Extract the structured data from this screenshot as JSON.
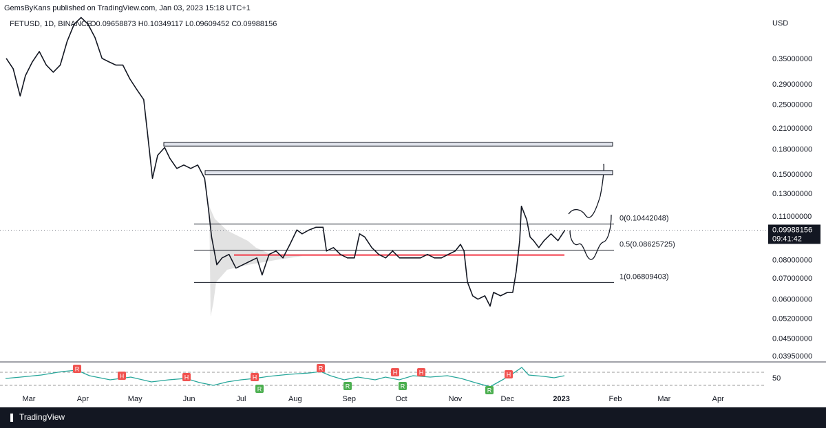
{
  "chart_data": {
    "type": "line",
    "published": "GemsByKans published on TradingView.com, Jan 03, 2023 15:18 UTC+1",
    "title": "FETUSD, 1D, BINANCE",
    "ohlc_text": "O0.09658873 H0.10349117 L0.09609452 C0.09988156",
    "y_axis_label": "USD",
    "color": "#131722",
    "log_scale": true,
    "grid": false,
    "x": [
      46,
      50,
      54,
      57,
      61,
      65,
      69,
      73,
      77,
      81,
      85,
      89,
      93,
      97,
      101,
      105,
      109,
      113,
      117,
      121,
      125,
      127,
      130,
      133,
      137,
      140,
      144,
      148,
      152,
      156,
      160,
      162,
      164,
      167,
      170,
      174,
      178,
      182,
      186,
      190,
      193,
      197,
      201,
      205,
      209,
      213,
      216,
      220,
      224,
      228,
      230,
      234,
      238,
      242,
      246,
      249,
      252,
      256,
      260,
      264,
      268,
      272,
      276,
      280,
      284,
      288,
      292,
      296,
      300,
      304,
      307,
      309,
      311,
      314,
      317,
      321,
      324,
      326,
      330,
      334,
      337,
      339,
      341,
      342,
      345,
      347,
      349,
      352,
      355,
      359,
      363,
      367
    ],
    "values": [
      0.352,
      0.326,
      0.267,
      0.31,
      0.343,
      0.37,
      0.335,
      0.318,
      0.335,
      0.399,
      0.452,
      0.475,
      0.452,
      0.41,
      0.352,
      0.343,
      0.335,
      0.335,
      0.303,
      0.28,
      0.26,
      0.207,
      0.146,
      0.173,
      0.183,
      0.169,
      0.157,
      0.161,
      0.157,
      0.161,
      0.146,
      0.119,
      0.095,
      0.0775,
      0.0815,
      0.0836,
      0.0756,
      0.0775,
      0.0795,
      0.0815,
      0.0719,
      0.0836,
      0.0857,
      0.0815,
      0.09,
      0.1,
      0.0972,
      0.1,
      0.102,
      0.102,
      0.0857,
      0.0879,
      0.0836,
      0.0815,
      0.0815,
      0.0972,
      0.095,
      0.0879,
      0.0836,
      0.0815,
      0.0857,
      0.0815,
      0.0815,
      0.0815,
      0.0815,
      0.0836,
      0.0815,
      0.0815,
      0.0836,
      0.0857,
      0.09,
      0.0857,
      0.0683,
      0.0617,
      0.0602,
      0.0617,
      0.0572,
      0.0633,
      0.0617,
      0.0633,
      0.0633,
      0.0737,
      0.0925,
      0.119,
      0.108,
      0.095,
      0.0925,
      0.0879,
      0.0925,
      0.0972,
      0.0925,
      0.09988156
    ],
    "xlim": [
      42.4,
      483.4
    ],
    "xticks": [
      {
        "value": 59,
        "label": "Mar"
      },
      {
        "value": 90,
        "label": "Apr"
      },
      {
        "value": 120,
        "label": "May"
      },
      {
        "value": 151,
        "label": "Jun"
      },
      {
        "value": 181,
        "label": "Jul"
      },
      {
        "value": 212,
        "label": "Aug"
      },
      {
        "value": 243,
        "label": "Sep"
      },
      {
        "value": 273,
        "label": "Oct"
      },
      {
        "value": 304,
        "label": "Nov"
      },
      {
        "value": 334,
        "label": "Dec"
      },
      {
        "value": 365,
        "label": "2023"
      },
      {
        "value": 396,
        "label": "Feb"
      },
      {
        "value": 424,
        "label": "Mar"
      },
      {
        "value": 455,
        "label": "Apr"
      }
    ],
    "ylim": [
      0.038,
      0.493
    ],
    "yticks": [
      {
        "value": 0.35,
        "label": "0.35000000"
      },
      {
        "value": 0.29,
        "label": "0.29000000"
      },
      {
        "value": 0.25,
        "label": "0.25000000"
      },
      {
        "value": 0.21,
        "label": "0.21000000"
      },
      {
        "value": 0.18,
        "label": "0.18000000"
      },
      {
        "value": 0.15,
        "label": "0.15000000"
      },
      {
        "value": 0.13,
        "label": "0.13000000"
      },
      {
        "value": 0.11,
        "label": "0.11000000"
      },
      {
        "value": 0.08,
        "label": "0.08000000"
      },
      {
        "value": 0.07,
        "label": "0.07000000"
      },
      {
        "value": 0.06,
        "label": "0.06000000"
      },
      {
        "value": 0.052,
        "label": "0.05200000"
      },
      {
        "value": 0.045,
        "label": "0.04500000"
      },
      {
        "value": 0.0395,
        "label": "0.03950000"
      }
    ],
    "last_price": 0.09988156,
    "countdown": "09:41:42",
    "fib_levels": [
      {
        "value": 0.10442048,
        "label": "0(0.10442048)"
      },
      {
        "value": 0.08625725,
        "label": "0.5(0.08625725)"
      },
      {
        "value": 0.06809403,
        "label": "1(0.06809403)"
      }
    ],
    "zones": [
      [
        0.185,
        0.19
      ],
      [
        0.15,
        0.1546
      ]
    ],
    "support": {
      "value": 0.0832,
      "color": "#f23645"
    },
    "indicator": {
      "yticks": [
        50
      ],
      "markers": [
        {
          "label": "R",
          "color": "#f05350"
        },
        {
          "label": "H",
          "color": "#f05350"
        },
        {
          "label": "H",
          "color": "#f05350"
        },
        {
          "label": "H",
          "color": "#f05350"
        },
        {
          "label": "R",
          "color": "#4caf50"
        },
        {
          "label": "R",
          "color": "#f05350"
        },
        {
          "label": "R",
          "color": "#4caf50"
        },
        {
          "label": "H",
          "color": "#f05350"
        },
        {
          "label": "R",
          "color": "#4caf50"
        },
        {
          "label": "H",
          "color": "#f05350"
        },
        {
          "label": "R",
          "color": "#4caf50"
        },
        {
          "label": "H",
          "color": "#f05350"
        }
      ]
    },
    "brand": "TradingView"
  }
}
